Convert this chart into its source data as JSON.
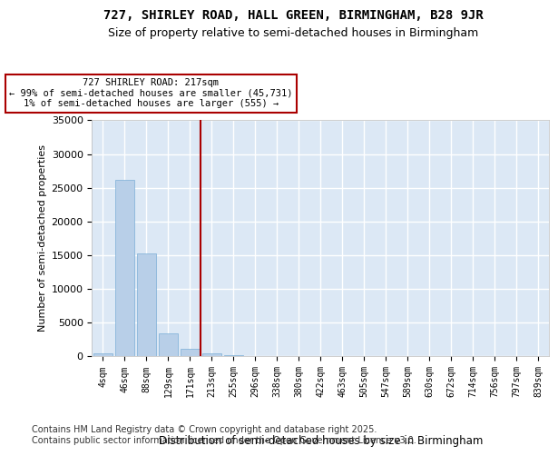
{
  "title": "727, SHIRLEY ROAD, HALL GREEN, BIRMINGHAM, B28 9JR",
  "subtitle": "Size of property relative to semi-detached houses in Birmingham",
  "xlabel": "Distribution of semi-detached houses by size in Birmingham",
  "ylabel": "Number of semi-detached properties",
  "categories": [
    "4sqm",
    "46sqm",
    "88sqm",
    "129sqm",
    "171sqm",
    "213sqm",
    "255sqm",
    "296sqm",
    "338sqm",
    "380sqm",
    "422sqm",
    "463sqm",
    "505sqm",
    "547sqm",
    "589sqm",
    "630sqm",
    "672sqm",
    "714sqm",
    "756sqm",
    "797sqm",
    "839sqm"
  ],
  "values": [
    400,
    26200,
    15200,
    3400,
    1100,
    450,
    150,
    50,
    20,
    10,
    5,
    3,
    2,
    1,
    1,
    0,
    0,
    0,
    0,
    0,
    0
  ],
  "bar_color": "#b8cfe8",
  "bar_edge_color": "#7aaed6",
  "vline_x": 4.5,
  "vline_color": "#aa0000",
  "annotation_text": "727 SHIRLEY ROAD: 217sqm\n← 99% of semi-detached houses are smaller (45,731)\n1% of semi-detached houses are larger (555) →",
  "annotation_box_edgecolor": "#aa0000",
  "ylim": [
    0,
    35000
  ],
  "yticks": [
    0,
    5000,
    10000,
    15000,
    20000,
    25000,
    30000,
    35000
  ],
  "background_color": "#dce8f5",
  "grid_color": "#ffffff",
  "title_fontsize": 10,
  "subtitle_fontsize": 9,
  "footer_text": "Contains HM Land Registry data © Crown copyright and database right 2025.\nContains public sector information licensed under the Open Government Licence v3.0.",
  "footer_fontsize": 7
}
